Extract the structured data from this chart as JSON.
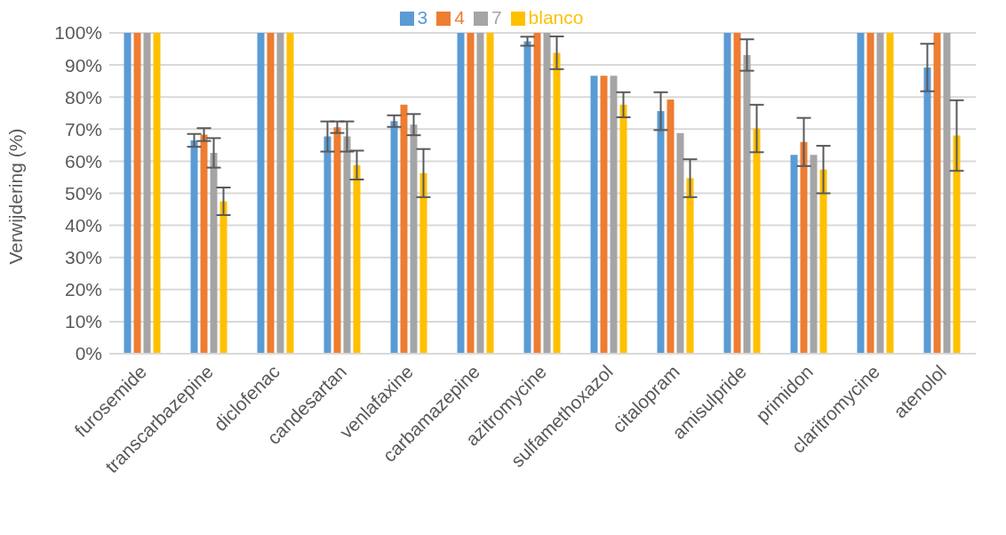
{
  "chart_data": {
    "type": "bar",
    "ylabel": "Verwijdering (%)",
    "categories": [
      "furosemide",
      "transcarbazepine",
      "diclofenac",
      "candesartan",
      "venlafaxine",
      "carbamazepine",
      "azitromycine",
      "sulfamethoxazol",
      "citalopram",
      "amisulpride",
      "primidon",
      "claritromycine",
      "atenolol"
    ],
    "series": [
      {
        "name": "3",
        "color": "#5b9bd5",
        "values": [
          100,
          66.5,
          100,
          67.7,
          72.5,
          100,
          97.4,
          86.6,
          75.6,
          100,
          62.0,
          100,
          89.2
        ],
        "errors": [
          null,
          2,
          null,
          4.7,
          1.8,
          null,
          1.4,
          null,
          5.9,
          null,
          null,
          null,
          7.4
        ]
      },
      {
        "name": "4",
        "color": "#ed7d31",
        "values": [
          100,
          68.3,
          100,
          70.6,
          77.6,
          100,
          100,
          86.6,
          79.2,
          100,
          66.0,
          100,
          100
        ],
        "errors": [
          null,
          2,
          null,
          1.8,
          null,
          null,
          null,
          null,
          null,
          null,
          7.5,
          null,
          null
        ]
      },
      {
        "name": "7",
        "color": "#a5a5a5",
        "values": [
          100,
          62.6,
          100,
          67.7,
          71.4,
          100,
          100,
          86.6,
          68.8,
          93.1,
          62.0,
          100,
          100
        ],
        "errors": [
          null,
          4.6,
          null,
          4.7,
          3.3,
          null,
          null,
          null,
          null,
          4.9,
          null,
          null,
          null
        ]
      },
      {
        "name": "blanco",
        "color": "#ffc000",
        "values": [
          100,
          47.5,
          100,
          58.8,
          56.3,
          100,
          93.8,
          77.6,
          54.7,
          70.2,
          57.4,
          100,
          68
        ],
        "errors": [
          null,
          4.3,
          null,
          4.5,
          7.5,
          null,
          5.1,
          3.9,
          5.9,
          7.4,
          7.4,
          null,
          11
        ]
      }
    ],
    "ylim": [
      0,
      100
    ],
    "yticks": [
      {
        "value": 0,
        "label": "0%"
      },
      {
        "value": 10,
        "label": "10%"
      },
      {
        "value": 20,
        "label": "20%"
      },
      {
        "value": 30,
        "label": "30%"
      },
      {
        "value": 40,
        "label": "40%"
      },
      {
        "value": 50,
        "label": "50%"
      },
      {
        "value": 60,
        "label": "60%"
      },
      {
        "value": 70,
        "label": "70%"
      },
      {
        "value": 80,
        "label": "80%"
      },
      {
        "value": 90,
        "label": "90%"
      },
      {
        "value": 100,
        "label": "100%"
      }
    ],
    "grid": "y",
    "legend": "top"
  }
}
